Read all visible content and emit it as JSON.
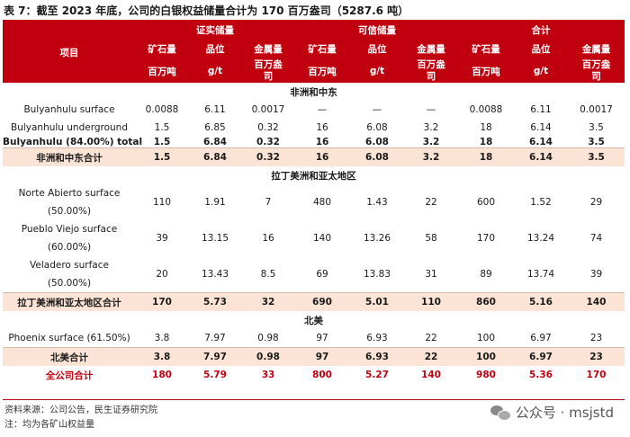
{
  "title": "表 7：截至 2023 年底，公司的白银权益储量合计为 170 百万盎司（5287.6 吨）",
  "header": {
    "item_label": "项目",
    "groups": [
      "证实储量",
      "可信储量",
      "合计"
    ],
    "cols": [
      {
        "l1": "矿石量",
        "l2": "百万吨"
      },
      {
        "l1": "品位",
        "l2": "g/t"
      },
      {
        "l1": "金属量",
        "l2": "百万盎",
        "l3": "司"
      },
      {
        "l1": "矿石量",
        "l2": "百万吨"
      },
      {
        "l1": "品位",
        "l2": "g/t"
      },
      {
        "l1": "金属量",
        "l2": "百万盎",
        "l3": "司"
      },
      {
        "l1": "矿石量",
        "l2": "百万吨"
      },
      {
        "l1": "品位",
        "l2": "g/t"
      },
      {
        "l1": "金属量",
        "l2": "百万盎",
        "l3": "司"
      }
    ]
  },
  "rows": [
    {
      "kind": "section",
      "label": "非洲和中东"
    },
    {
      "kind": "normal",
      "indent": true,
      "label": "Bulyanhulu surface",
      "values": [
        "0.0088",
        "6.11",
        "0.0017",
        "—",
        "—",
        "—",
        "0.0088",
        "6.11",
        "0.0017"
      ]
    },
    {
      "kind": "normal",
      "indent": true,
      "label": "Bulyanhulu underground",
      "values": [
        "1.5",
        "6.85",
        "0.32",
        "16",
        "6.08",
        "3.2",
        "18",
        "6.14",
        "3.5"
      ]
    },
    {
      "kind": "bold",
      "label": "Bulyanhulu (84.00%) total",
      "values": [
        "1.5",
        "6.84",
        "0.32",
        "16",
        "6.08",
        "3.2",
        "18",
        "6.14",
        "3.5"
      ]
    },
    {
      "kind": "sub",
      "label": "非洲和中东合计",
      "values": [
        "1.5",
        "6.84",
        "0.32",
        "16",
        "6.08",
        "3.2",
        "18",
        "6.14",
        "3.5"
      ]
    },
    {
      "kind": "section",
      "label": "拉丁美洲和亚太地区"
    },
    {
      "kind": "tall",
      "label": "Norte Abierto surface",
      "label2": "(50.00%)",
      "values": [
        "110",
        "1.91",
        "7",
        "480",
        "1.43",
        "22",
        "600",
        "1.52",
        "29"
      ]
    },
    {
      "kind": "tall",
      "label": "Pueblo Viejo surface",
      "label2": "(60.00%)",
      "values": [
        "39",
        "13.15",
        "16",
        "140",
        "13.26",
        "58",
        "170",
        "13.24",
        "74"
      ]
    },
    {
      "kind": "tall",
      "label": "Veladero surface",
      "label2": "(50.00%)",
      "values": [
        "20",
        "13.43",
        "8.5",
        "69",
        "13.83",
        "31",
        "89",
        "13.74",
        "39"
      ]
    },
    {
      "kind": "sub",
      "label": "拉丁美洲和亚太地区合计",
      "values": [
        "170",
        "5.73",
        "32",
        "690",
        "5.01",
        "110",
        "860",
        "5.16",
        "140"
      ]
    },
    {
      "kind": "section",
      "label": "北美"
    },
    {
      "kind": "normal",
      "label": "Phoenix surface (61.50%)",
      "values": [
        "3.8",
        "7.97",
        "0.98",
        "97",
        "6.93",
        "22",
        "100",
        "6.97",
        "23"
      ]
    },
    {
      "kind": "sub",
      "label": "北美合计",
      "values": [
        "3.8",
        "7.97",
        "0.98",
        "97",
        "6.93",
        "22",
        "100",
        "6.97",
        "23"
      ]
    },
    {
      "kind": "total",
      "label": "全公司合计",
      "values": [
        "180",
        "5.79",
        "33",
        "800",
        "5.27",
        "140",
        "980",
        "5.36",
        "170"
      ]
    }
  ],
  "notes": [
    "资料来源：公司公告，民生证券研究院",
    "注：均为各矿山权益量"
  ],
  "watermark": "公众号 · msjstd",
  "colors": {
    "accent": "#c0000f",
    "subtotal_bg": "#fbe4d6"
  }
}
